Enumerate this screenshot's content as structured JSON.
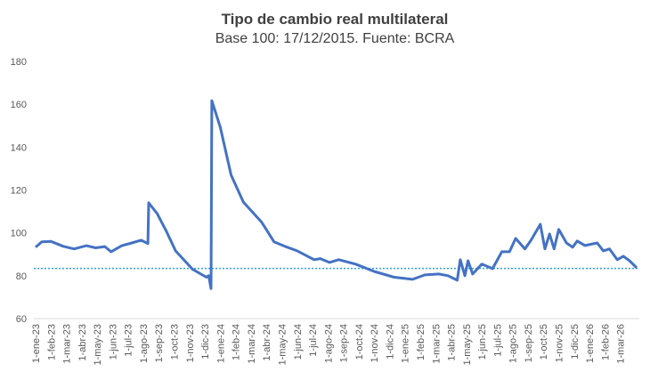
{
  "chart_data": {
    "type": "line",
    "title": "Tipo de cambio real multilateral",
    "subtitle": "Base 100: 17/12/2015. Fuente: BCRA",
    "xlabel": "",
    "ylabel": "",
    "ylim": [
      60,
      180
    ],
    "yticks": [
      "60",
      "80",
      "100",
      "120",
      "140",
      "160",
      "180"
    ],
    "grid": false,
    "categories": [
      "1-ene-23",
      "1-feb-23",
      "1-mar-23",
      "1-abr-23",
      "1-may-23",
      "1-jun-23",
      "1-jul-23",
      "1-ago-23",
      "1-sep-23",
      "1-oct-23",
      "1-nov-23",
      "1-dic-23",
      "1-ene-24",
      "1-feb-24",
      "1-mar-24",
      "1-abr-24",
      "1-may-24",
      "1-jun-24",
      "1-jul-24",
      "1-ago-24",
      "1-sep-24",
      "1-oct-24",
      "1-nov-24",
      "1-dic-24",
      "1-ene-25",
      "1-feb-25",
      "1-mar-25",
      "1-abr-25",
      "1-may-25",
      "1-jun-25",
      "1-jul-25",
      "1-ago-25",
      "1-sep-25",
      "1-oct-25",
      "1-nov-25",
      "1-dic-25",
      "1-ene-26",
      "1-feb-26",
      "1-mar-26"
    ],
    "series": [
      {
        "name": "Tipo de cambio real multilateral",
        "color": "#4472C4",
        "points_month_index_value": [
          [
            0,
            93.3
          ],
          [
            0.4,
            95.8
          ],
          [
            1.0,
            96
          ],
          [
            1.8,
            93.7
          ],
          [
            2.5,
            92.5
          ],
          [
            3.3,
            94
          ],
          [
            3.9,
            93
          ],
          [
            4.5,
            93.6
          ],
          [
            4.9,
            91.2
          ],
          [
            5.6,
            94
          ],
          [
            6.25,
            95.3
          ],
          [
            6.85,
            96.6
          ],
          [
            7.3,
            95
          ],
          [
            7.35,
            114
          ],
          [
            7.9,
            109
          ],
          [
            8.5,
            100.7
          ],
          [
            9.1,
            91.6
          ],
          [
            10.2,
            83
          ],
          [
            11.1,
            79.3
          ],
          [
            11.25,
            80
          ],
          [
            11.4,
            74
          ],
          [
            11.45,
            161.7
          ],
          [
            12,
            149.3
          ],
          [
            12.7,
            127
          ],
          [
            13.5,
            114.4
          ],
          [
            14.7,
            104.9
          ],
          [
            15.5,
            95.8
          ],
          [
            16.2,
            93.7
          ],
          [
            17,
            91.6
          ],
          [
            18.1,
            87.5
          ],
          [
            18.5,
            88
          ],
          [
            19.1,
            86.2
          ],
          [
            19.7,
            87.5
          ],
          [
            20.8,
            85.4
          ],
          [
            22,
            82
          ],
          [
            23.3,
            79.3
          ],
          [
            24.5,
            78.3
          ],
          [
            25.3,
            80.4
          ],
          [
            26.2,
            80.8
          ],
          [
            26.8,
            80
          ],
          [
            27.4,
            77.9
          ],
          [
            27.6,
            87.5
          ],
          [
            27.9,
            80
          ],
          [
            28.1,
            87
          ],
          [
            28.4,
            80.8
          ],
          [
            29,
            85.4
          ],
          [
            29.7,
            83.3
          ],
          [
            30.3,
            91.2
          ],
          [
            30.8,
            91.2
          ],
          [
            31.2,
            97.4
          ],
          [
            31.8,
            92.5
          ],
          [
            32.2,
            96.6
          ],
          [
            32.8,
            104
          ],
          [
            33.1,
            92.5
          ],
          [
            33.4,
            99.5
          ],
          [
            33.7,
            92.5
          ],
          [
            34,
            101.6
          ],
          [
            34.5,
            95.3
          ],
          [
            34.9,
            93.3
          ],
          [
            35.2,
            96.2
          ],
          [
            35.7,
            94.1
          ],
          [
            36.5,
            95.3
          ],
          [
            36.9,
            91.6
          ],
          [
            37.3,
            92.5
          ],
          [
            37.8,
            87.5
          ],
          [
            38.2,
            89.1
          ],
          [
            38.6,
            87
          ],
          [
            39.06,
            83.7
          ]
        ]
      }
    ],
    "reference_line": {
      "value": 83.4,
      "style": "dotted",
      "color": "#2EA3E0"
    }
  }
}
